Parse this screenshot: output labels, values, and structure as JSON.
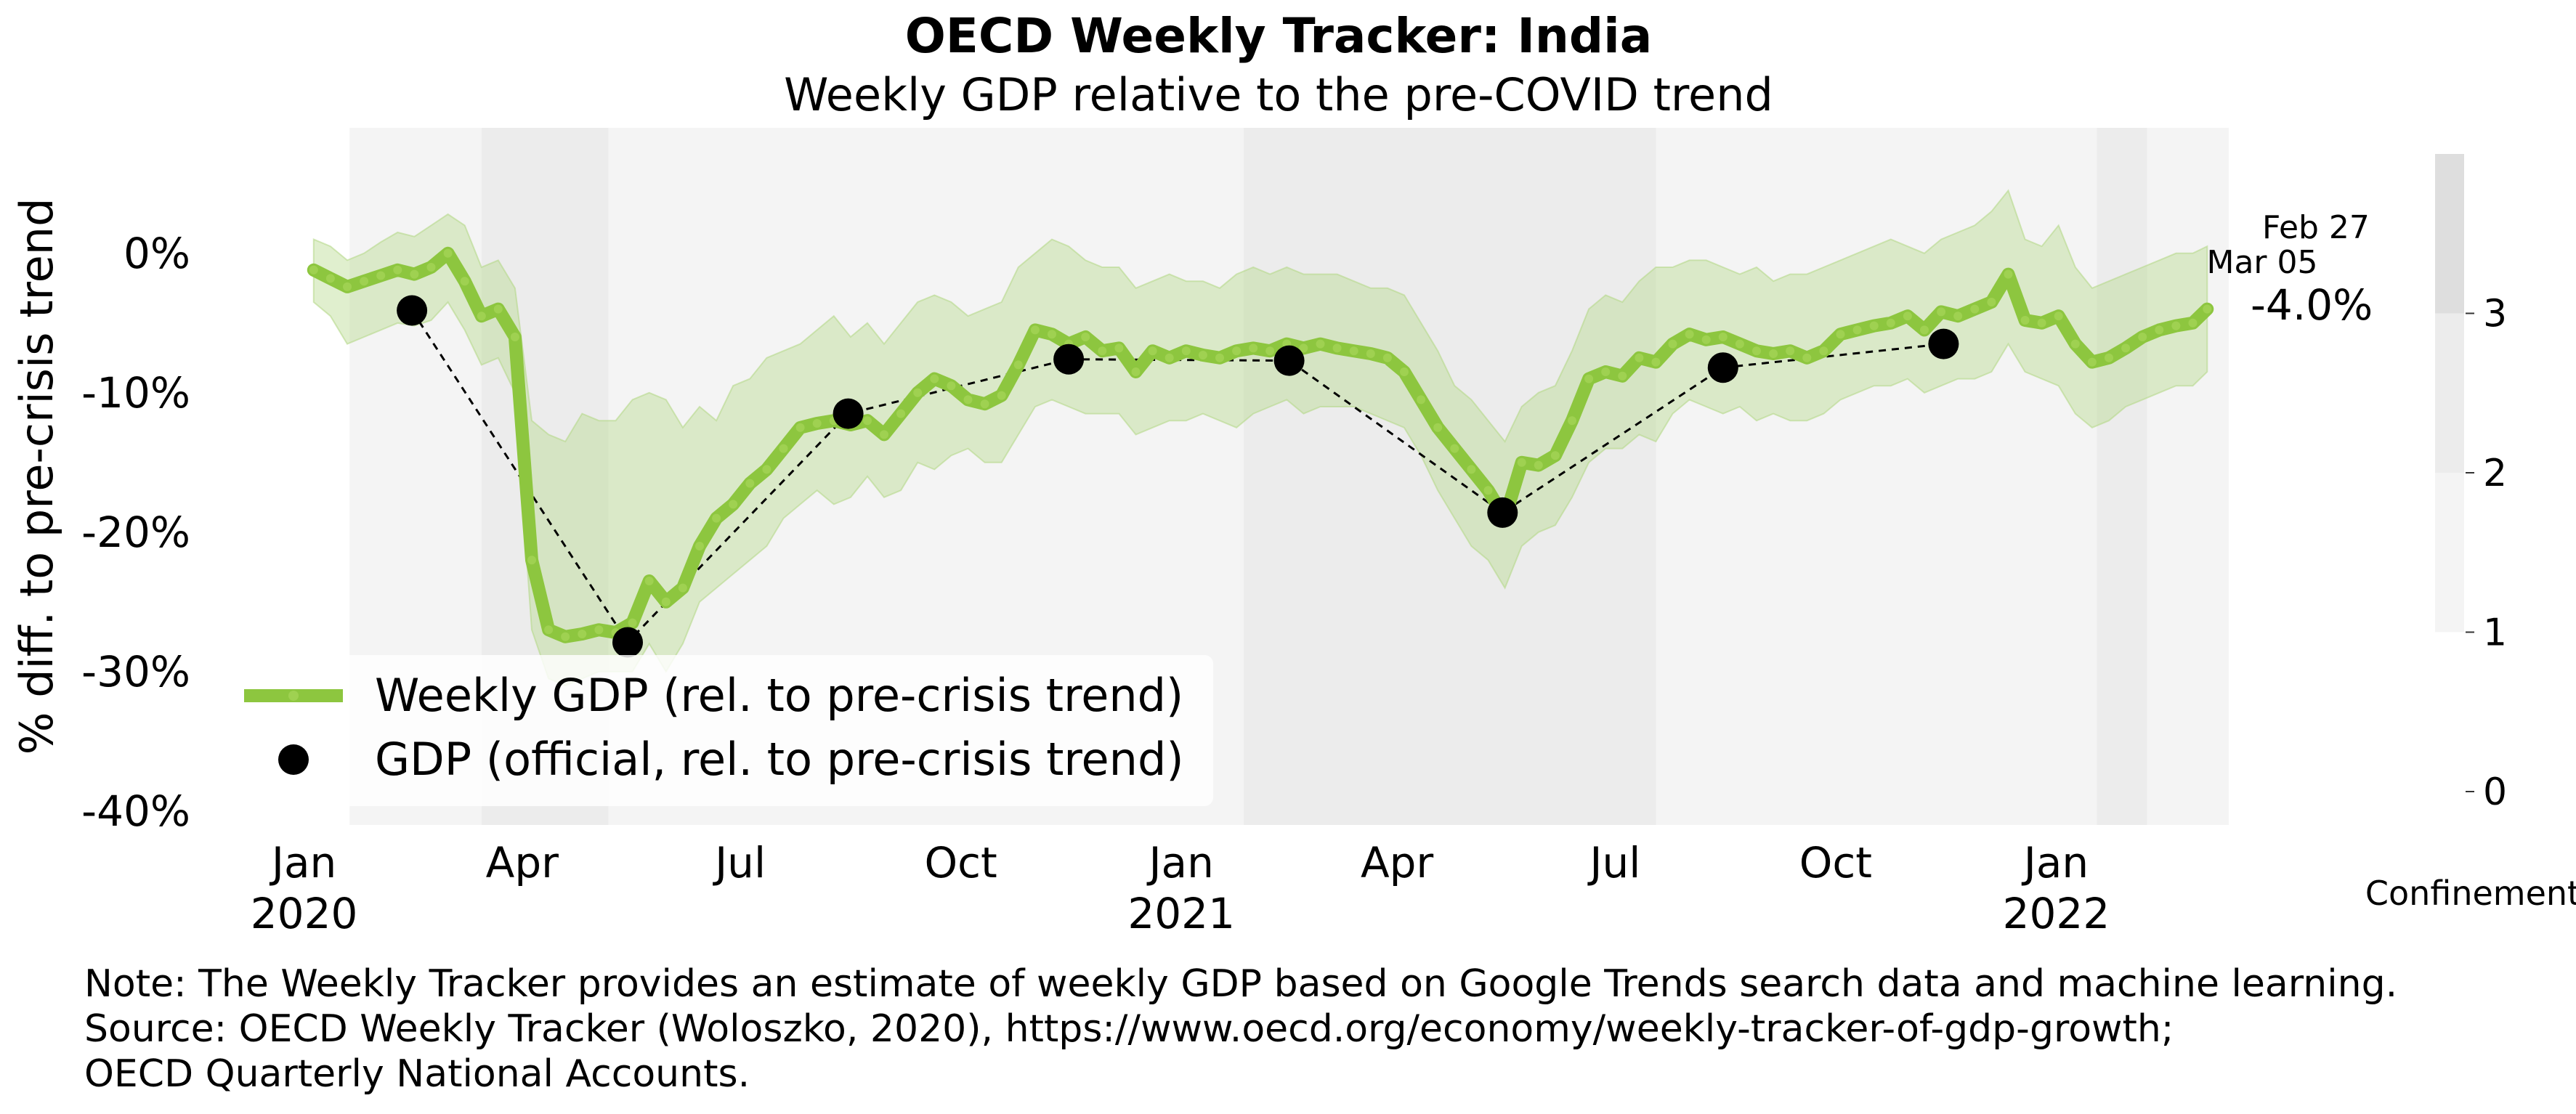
{
  "chart_data": {
    "type": "line",
    "title": "OECD Weekly Tracker: India",
    "subtitle": "Weekly GDP relative to the pre-COVID trend",
    "ylabel": "% diff. to pre-crisis trend",
    "xlabel": "",
    "ylim": [
      -41,
      9
    ],
    "x_range": [
      "2019-12-30",
      "2022-03-14"
    ],
    "x_ticks": [
      {
        "date": "2020-01-01",
        "line1": "Jan",
        "line2": "2020"
      },
      {
        "date": "2020-04-01",
        "line1": "Apr",
        "line2": ""
      },
      {
        "date": "2020-07-01",
        "line1": "Jul",
        "line2": ""
      },
      {
        "date": "2020-10-01",
        "line1": "Oct",
        "line2": ""
      },
      {
        "date": "2021-01-01",
        "line1": "Jan",
        "line2": "2021"
      },
      {
        "date": "2021-04-01",
        "line1": "Apr",
        "line2": ""
      },
      {
        "date": "2021-07-01",
        "line1": "Jul",
        "line2": ""
      },
      {
        "date": "2021-10-01",
        "line1": "Oct",
        "line2": ""
      },
      {
        "date": "2022-01-01",
        "line1": "Jan",
        "line2": "2022"
      }
    ],
    "y_ticks": [
      {
        "value": 0,
        "label": "0%"
      },
      {
        "value": -10,
        "label": "-10%"
      },
      {
        "value": -20,
        "label": "-20%"
      },
      {
        "value": -30,
        "label": "-30%"
      },
      {
        "value": -40,
        "label": "-40%"
      }
    ],
    "grid": false,
    "legend_position": "bottom-left",
    "series": [
      {
        "name": "Weekly GDP (rel. to pre-crisis trend)",
        "color": "#8dc63f",
        "band_color": "#b5d98a",
        "points": [
          [
            "2020-01-05",
            -1.2,
            -3.5,
            1.0
          ],
          [
            "2020-01-12",
            -1.8,
            -4.5,
            0.5
          ],
          [
            "2020-01-19",
            -2.4,
            -6.5,
            -0.5
          ],
          [
            "2020-01-26",
            -2.0,
            -6.0,
            0.0
          ],
          [
            "2020-02-02",
            -1.6,
            -5.5,
            0.8
          ],
          [
            "2020-02-09",
            -1.2,
            -5.0,
            1.5
          ],
          [
            "2020-02-16",
            -1.5,
            -5.2,
            1.2
          ],
          [
            "2020-02-23",
            -1.0,
            -4.8,
            2.0
          ],
          [
            "2020-03-01",
            0.0,
            -3.5,
            2.8
          ],
          [
            "2020-03-08",
            -2.0,
            -5.5,
            2.0
          ],
          [
            "2020-03-15",
            -4.5,
            -8.0,
            -1.0
          ],
          [
            "2020-03-22",
            -4.0,
            -7.5,
            -0.5
          ],
          [
            "2020-03-29",
            -6.0,
            -10.0,
            -2.5
          ],
          [
            "2020-04-05",
            -22.0,
            -27.0,
            -12.0
          ],
          [
            "2020-04-12",
            -27.0,
            -30.5,
            -13.0
          ],
          [
            "2020-04-19",
            -27.5,
            -31.0,
            -13.5
          ],
          [
            "2020-04-26",
            -27.3,
            -30.5,
            -11.5
          ],
          [
            "2020-05-03",
            -27.0,
            -30.0,
            -12.0
          ],
          [
            "2020-05-10",
            -27.2,
            -30.0,
            -12.0
          ],
          [
            "2020-05-17",
            -26.5,
            -30.0,
            -10.5
          ],
          [
            "2020-05-24",
            -23.5,
            -28.0,
            -10.0
          ],
          [
            "2020-05-31",
            -25.0,
            -30.0,
            -10.5
          ],
          [
            "2020-06-07",
            -24.0,
            -28.0,
            -12.5
          ],
          [
            "2020-06-14",
            -21.0,
            -25.0,
            -11.0
          ],
          [
            "2020-06-21",
            -19.0,
            -24.0,
            -12.0
          ],
          [
            "2020-06-28",
            -18.0,
            -23.0,
            -9.5
          ],
          [
            "2020-07-05",
            -16.5,
            -22.0,
            -9.0
          ],
          [
            "2020-07-12",
            -15.5,
            -21.0,
            -7.5
          ],
          [
            "2020-07-19",
            -14.0,
            -19.0,
            -7.0
          ],
          [
            "2020-07-26",
            -12.5,
            -18.0,
            -6.5
          ],
          [
            "2020-08-02",
            -12.2,
            -17.0,
            -5.5
          ],
          [
            "2020-08-09",
            -12.0,
            -18.0,
            -4.5
          ],
          [
            "2020-08-16",
            -12.3,
            -17.5,
            -6.0
          ],
          [
            "2020-08-23",
            -12.0,
            -16.0,
            -5.0
          ],
          [
            "2020-08-30",
            -13.0,
            -17.5,
            -6.5
          ],
          [
            "2020-09-06",
            -11.5,
            -17.0,
            -5.0
          ],
          [
            "2020-09-13",
            -10.0,
            -15.0,
            -3.5
          ],
          [
            "2020-09-20",
            -9.0,
            -15.5,
            -3.0
          ],
          [
            "2020-09-27",
            -9.5,
            -14.5,
            -3.5
          ],
          [
            "2020-10-04",
            -10.5,
            -14.0,
            -4.5
          ],
          [
            "2020-10-11",
            -10.8,
            -15.0,
            -4.0
          ],
          [
            "2020-10-18",
            -10.2,
            -15.0,
            -3.5
          ],
          [
            "2020-10-25",
            -8.0,
            -13.0,
            -1.0
          ],
          [
            "2020-11-01",
            -5.5,
            -11.0,
            0.0
          ],
          [
            "2020-11-08",
            -5.8,
            -10.5,
            1.0
          ],
          [
            "2020-11-15",
            -6.5,
            -11.0,
            0.5
          ],
          [
            "2020-11-22",
            -6.0,
            -11.5,
            -0.5
          ],
          [
            "2020-11-29",
            -7.0,
            -11.5,
            -1.0
          ],
          [
            "2020-12-06",
            -6.8,
            -11.5,
            -1.0
          ],
          [
            "2020-12-13",
            -8.5,
            -13.0,
            -2.5
          ],
          [
            "2020-12-20",
            -7.0,
            -12.5,
            -2.0
          ],
          [
            "2020-12-27",
            -7.5,
            -12.0,
            -1.5
          ],
          [
            "2021-01-03",
            -7.0,
            -12.0,
            -2.0
          ],
          [
            "2021-01-10",
            -7.3,
            -11.5,
            -2.0
          ],
          [
            "2021-01-17",
            -7.5,
            -12.0,
            -2.5
          ],
          [
            "2021-01-24",
            -7.0,
            -12.5,
            -1.5
          ],
          [
            "2021-01-31",
            -6.8,
            -11.5,
            -1.0
          ],
          [
            "2021-02-07",
            -7.0,
            -11.0,
            -1.5
          ],
          [
            "2021-02-14",
            -6.5,
            -10.5,
            -1.0
          ],
          [
            "2021-02-21",
            -6.8,
            -11.5,
            -1.5
          ],
          [
            "2021-02-28",
            -6.5,
            -11.0,
            -1.5
          ],
          [
            "2021-03-07",
            -6.8,
            -11.0,
            -1.5
          ],
          [
            "2021-03-14",
            -7.0,
            -11.0,
            -2.0
          ],
          [
            "2021-03-21",
            -7.2,
            -11.5,
            -2.5
          ],
          [
            "2021-03-28",
            -7.5,
            -12.0,
            -2.5
          ],
          [
            "2021-04-04",
            -8.5,
            -12.5,
            -3.0
          ],
          [
            "2021-04-11",
            -10.5,
            -14.5,
            -5.0
          ],
          [
            "2021-04-18",
            -12.5,
            -17.0,
            -7.0
          ],
          [
            "2021-04-25",
            -14.0,
            -19.0,
            -9.5
          ],
          [
            "2021-05-02",
            -15.5,
            -21.0,
            -10.5
          ],
          [
            "2021-05-09",
            -17.0,
            -22.0,
            -12.0
          ],
          [
            "2021-05-16",
            -19.0,
            -24.0,
            -13.5
          ],
          [
            "2021-05-23",
            -15.0,
            -21.0,
            -11.0
          ],
          [
            "2021-05-30",
            -15.2,
            -20.0,
            -10.0
          ],
          [
            "2021-06-06",
            -14.5,
            -19.5,
            -9.5
          ],
          [
            "2021-06-13",
            -12.0,
            -17.5,
            -7.0
          ],
          [
            "2021-06-20",
            -9.0,
            -15.0,
            -4.0
          ],
          [
            "2021-06-27",
            -8.5,
            -14.0,
            -3.0
          ],
          [
            "2021-07-04",
            -8.8,
            -14.0,
            -3.5
          ],
          [
            "2021-07-11",
            -7.5,
            -13.0,
            -2.0
          ],
          [
            "2021-07-18",
            -7.8,
            -13.5,
            -1.0
          ],
          [
            "2021-07-25",
            -6.5,
            -11.5,
            -1.0
          ],
          [
            "2021-08-01",
            -5.8,
            -10.5,
            -0.5
          ],
          [
            "2021-08-08",
            -6.2,
            -11.0,
            -0.5
          ],
          [
            "2021-08-15",
            -6.0,
            -11.5,
            -1.0
          ],
          [
            "2021-08-22",
            -6.5,
            -11.0,
            -1.5
          ],
          [
            "2021-08-29",
            -7.0,
            -12.0,
            -1.0
          ],
          [
            "2021-09-05",
            -7.2,
            -11.5,
            -2.0
          ],
          [
            "2021-09-12",
            -7.0,
            -12.0,
            -1.5
          ],
          [
            "2021-09-19",
            -7.5,
            -12.0,
            -1.5
          ],
          [
            "2021-09-26",
            -7.0,
            -11.5,
            -1.0
          ],
          [
            "2021-10-03",
            -5.8,
            -10.5,
            -0.5
          ],
          [
            "2021-10-10",
            -5.5,
            -10.0,
            0.0
          ],
          [
            "2021-10-17",
            -5.2,
            -9.5,
            0.5
          ],
          [
            "2021-10-24",
            -5.0,
            -9.5,
            1.0
          ],
          [
            "2021-10-31",
            -4.5,
            -9.0,
            0.5
          ],
          [
            "2021-11-07",
            -5.5,
            -10.0,
            0.0
          ],
          [
            "2021-11-14",
            -4.2,
            -9.5,
            1.0
          ],
          [
            "2021-11-21",
            -4.5,
            -9.0,
            1.5
          ],
          [
            "2021-11-28",
            -4.0,
            -9.0,
            2.0
          ],
          [
            "2021-12-05",
            -3.5,
            -8.5,
            3.0
          ],
          [
            "2021-12-12",
            -1.5,
            -6.5,
            4.5
          ],
          [
            "2021-12-19",
            -4.8,
            -8.5,
            1.0
          ],
          [
            "2021-12-26",
            -5.0,
            -9.0,
            0.5
          ],
          [
            "2022-01-02",
            -4.5,
            -9.5,
            2.0
          ],
          [
            "2022-01-09",
            -6.5,
            -11.5,
            -1.0
          ],
          [
            "2022-01-16",
            -7.8,
            -12.5,
            -2.5
          ],
          [
            "2022-01-23",
            -7.5,
            -12.0,
            -2.0
          ],
          [
            "2022-01-30",
            -6.8,
            -11.0,
            -1.5
          ],
          [
            "2022-02-06",
            -6.0,
            -10.5,
            -1.0
          ],
          [
            "2022-02-13",
            -5.5,
            -10.0,
            -0.5
          ],
          [
            "2022-02-20",
            -5.2,
            -9.5,
            0.0
          ],
          [
            "2022-02-27",
            -5.0,
            -9.5,
            0.0
          ],
          [
            "2022-03-05",
            -4.0,
            -8.5,
            0.5
          ]
        ]
      },
      {
        "name": "GDP (official, rel. to pre-crisis trend)",
        "color": "#000000",
        "points": [
          [
            "2020-02-15",
            -4.1
          ],
          [
            "2020-05-15",
            -27.9
          ],
          [
            "2020-08-15",
            -11.5
          ],
          [
            "2020-11-15",
            -7.6
          ],
          [
            "2021-02-15",
            -7.7
          ],
          [
            "2021-05-15",
            -18.6
          ],
          [
            "2021-08-15",
            -8.2
          ],
          [
            "2021-11-15",
            -6.5
          ]
        ]
      }
    ],
    "end_annotation": {
      "date_line1": "Feb 27",
      "date_line2": "Mar 05",
      "value_label": "-4.0%"
    },
    "confinement": {
      "label": "Confinement",
      "ticks": [
        "0",
        "1",
        "2",
        "3"
      ],
      "scale_range": [
        0,
        4
      ],
      "palette": [
        {
          "lo": 1,
          "hi": 2,
          "color": "#f4f4f4"
        },
        {
          "lo": 2,
          "hi": 3,
          "color": "#ececec"
        },
        {
          "lo": 3,
          "hi": 4,
          "color": "#dedede"
        }
      ],
      "periods": [
        {
          "start": "2020-01-20",
          "end": "2020-03-15",
          "level": 1
        },
        {
          "start": "2020-03-15",
          "end": "2020-05-07",
          "level": 3
        },
        {
          "start": "2020-05-07",
          "end": "2021-01-27",
          "level": 2
        },
        {
          "start": "2021-01-27",
          "end": "2021-07-18",
          "level": 3
        },
        {
          "start": "2021-07-18",
          "end": "2022-01-18",
          "level": 2
        },
        {
          "start": "2022-01-18",
          "end": "2022-02-08",
          "level": 3
        },
        {
          "start": "2022-02-08",
          "end": "2022-03-14",
          "level": 2
        }
      ]
    }
  },
  "note": {
    "line1": "Note: The Weekly Tracker provides an estimate of weekly GDP based on Google Trends search data and machine learning.",
    "line2": "Source: OECD Weekly Tracker (Woloszko, 2020), https://www.oecd.org/economy/weekly-tracker-of-gdp-growth;",
    "line3": "OECD Quarterly National Accounts."
  }
}
